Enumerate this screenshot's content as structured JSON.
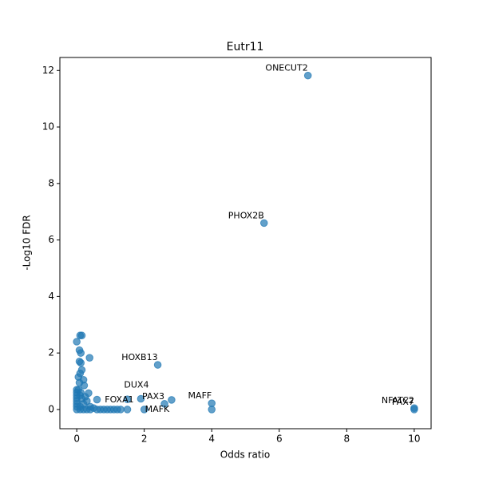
{
  "chart_data": {
    "type": "scatter",
    "title": "Eutr11",
    "xlabel": "Odds ratio",
    "ylabel": "-Log10 FDR",
    "color": "#1f77b4",
    "xlim": [
      -0.5,
      10.5
    ],
    "ylim": [
      -0.68,
      12.46
    ],
    "xticks": [
      0,
      2,
      4,
      6,
      8,
      10
    ],
    "yticks": [
      0,
      2,
      4,
      6,
      8,
      10,
      12
    ],
    "x": [
      6.85,
      5.55,
      2.4,
      1.9,
      2.6,
      4.0,
      10.0,
      10.0,
      0.5,
      2.0,
      0.1,
      0.15,
      0,
      0.08,
      0.12,
      0.38,
      0.08,
      0.12,
      0.15,
      0.1,
      0.05,
      0.2,
      0.08,
      0.22,
      0,
      0.05,
      0,
      0.12,
      0.35,
      0,
      0.1,
      0.25,
      0,
      0.15,
      0,
      0.3,
      0.6,
      0,
      0.2,
      0,
      0.1,
      0.4,
      0,
      0.1,
      0.2,
      0.3,
      0.4,
      0.6,
      0.7,
      0.8,
      0.9,
      1.0,
      1.1,
      1.2,
      1.3,
      1.5,
      1.5,
      2.81,
      4.0
    ],
    "y": [
      11.82,
      6.6,
      1.58,
      0.38,
      0.2,
      0.22,
      0.05,
      0,
      0.05,
      0,
      2.62,
      2.62,
      2.4,
      2.1,
      2.0,
      1.83,
      1.7,
      1.65,
      1.4,
      1.28,
      1.15,
      1.05,
      0.95,
      0.85,
      0.7,
      0.7,
      0.6,
      0.6,
      0.58,
      0.5,
      0.5,
      0.45,
      0.4,
      0.38,
      0.3,
      0.3,
      0.35,
      0.2,
      0.2,
      0.1,
      0.1,
      0.1,
      0,
      0,
      0,
      0,
      0,
      0,
      0,
      0,
      0,
      0,
      0,
      0,
      0,
      0,
      0.36,
      0.34,
      0
    ],
    "point_labels": [
      "ONECUT2",
      "PHOX2B",
      "HOXB13",
      "DUX4",
      "PAX3",
      "MAFF",
      "NFATC2",
      "PAX7",
      "FOXA1",
      "MAFK",
      null,
      null,
      null,
      null,
      null,
      null,
      null,
      null,
      null,
      null,
      null,
      null,
      null,
      null,
      null,
      null,
      null,
      null,
      null,
      null,
      null,
      null,
      null,
      null,
      null,
      null,
      null,
      null,
      null,
      null,
      null,
      null,
      null,
      null,
      null,
      null,
      null,
      null,
      null,
      null,
      null,
      null,
      null,
      null,
      null,
      null,
      null,
      null,
      null
    ]
  }
}
